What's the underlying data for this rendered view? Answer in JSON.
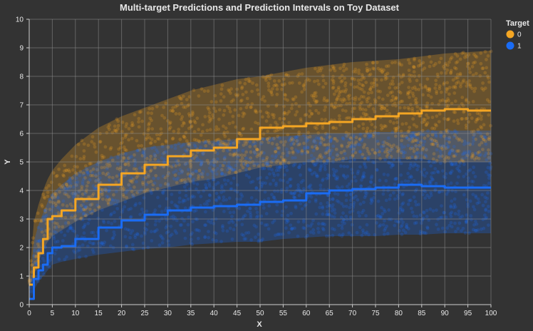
{
  "chart_data": {
    "type": "line",
    "title": "Multi-target Predictions and Prediction Intervals on Toy Dataset",
    "xlabel": "X",
    "ylabel": "Y",
    "xlim": [
      0,
      100
    ],
    "ylim": [
      0,
      10
    ],
    "x_ticks": [
      0,
      5,
      10,
      15,
      20,
      25,
      30,
      35,
      40,
      45,
      50,
      55,
      60,
      65,
      70,
      75,
      80,
      85,
      90,
      95,
      100
    ],
    "y_ticks": [
      0,
      1,
      2,
      3,
      4,
      5,
      6,
      7,
      8,
      9,
      10
    ],
    "grid": true,
    "legend": {
      "title": "Target",
      "placement": "right-top"
    },
    "series": [
      {
        "name": "0",
        "color": "#f5a623",
        "x": [
          0,
          1,
          2,
          3,
          4,
          5,
          7,
          10,
          15,
          20,
          25,
          30,
          35,
          40,
          45,
          50,
          55,
          60,
          65,
          70,
          75,
          80,
          85,
          90,
          95,
          100
        ],
        "prediction": [
          0.7,
          1.3,
          1.8,
          2.3,
          3.0,
          3.1,
          3.3,
          3.7,
          4.2,
          4.6,
          4.9,
          5.2,
          5.4,
          5.5,
          5.8,
          6.2,
          6.25,
          6.35,
          6.4,
          6.5,
          6.6,
          6.7,
          6.8,
          6.85,
          6.8,
          6.8
        ],
        "lower": [
          0.6,
          1.0,
          1.5,
          1.9,
          2.2,
          2.4,
          2.6,
          2.9,
          3.3,
          3.6,
          3.9,
          4.1,
          4.3,
          4.4,
          4.6,
          4.8,
          4.9,
          5.0,
          5.0,
          5.1,
          5.1,
          5.1,
          5.1,
          5.0,
          5.0,
          5.0
        ],
        "upper": [
          0.8,
          2.9,
          3.5,
          4.0,
          4.4,
          4.7,
          5.1,
          5.6,
          6.2,
          6.6,
          6.9,
          7.2,
          7.5,
          7.7,
          7.9,
          8.0,
          8.15,
          8.3,
          8.4,
          8.5,
          8.55,
          8.6,
          8.7,
          8.8,
          8.85,
          8.9
        ]
      },
      {
        "name": "1",
        "color": "#1a6cf5",
        "x": [
          0,
          1,
          2,
          3,
          4,
          5,
          7,
          10,
          15,
          20,
          25,
          30,
          35,
          40,
          45,
          50,
          55,
          60,
          65,
          70,
          75,
          80,
          85,
          90,
          95,
          100
        ],
        "prediction": [
          0.2,
          0.9,
          1.2,
          1.4,
          1.8,
          2.0,
          2.05,
          2.3,
          2.7,
          2.95,
          3.15,
          3.3,
          3.4,
          3.45,
          3.5,
          3.6,
          3.65,
          3.9,
          4.0,
          4.05,
          4.1,
          4.2,
          4.15,
          4.1,
          4.1,
          4.1
        ],
        "lower": [
          0.1,
          0.5,
          0.8,
          1.0,
          1.2,
          1.4,
          1.5,
          1.6,
          1.75,
          1.85,
          1.95,
          2.0,
          2.1,
          2.15,
          2.2,
          2.2,
          2.3,
          2.35,
          2.4,
          2.4,
          2.4,
          2.45,
          2.45,
          2.5,
          2.5,
          2.5
        ],
        "upper": [
          0.3,
          2.2,
          2.8,
          3.2,
          3.6,
          3.9,
          4.2,
          4.6,
          5.0,
          5.3,
          5.5,
          5.6,
          5.7,
          5.75,
          5.8,
          5.85,
          5.9,
          5.95,
          6.0,
          6.0,
          6.05,
          6.05,
          6.1,
          6.1,
          6.1,
          6.1
        ]
      }
    ]
  }
}
